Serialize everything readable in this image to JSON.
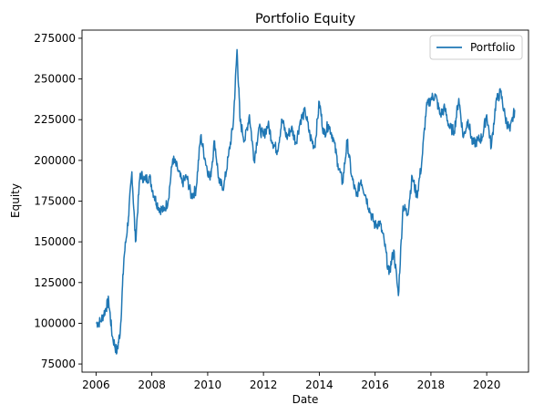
{
  "chart_data": {
    "type": "line",
    "title": "Portfolio Equity",
    "xlabel": "Date",
    "ylabel": "Equity",
    "xlim": [
      "2005-07-01",
      "2021-07-01"
    ],
    "ylim": [
      70000,
      280000
    ],
    "x_ticks": [
      "2006",
      "2008",
      "2010",
      "2012",
      "2014",
      "2016",
      "2018",
      "2020"
    ],
    "y_ticks": [
      75000,
      100000,
      125000,
      150000,
      175000,
      200000,
      225000,
      250000,
      275000
    ],
    "legend_position": "top-right",
    "grid": false,
    "series": [
      {
        "name": "Portfolio",
        "color": "#1f77b4",
        "x": [
          "2006-01-01",
          "2006-03-01",
          "2006-05-01",
          "2006-06-15",
          "2006-08-01",
          "2006-10-01",
          "2006-11-15",
          "2007-01-01",
          "2007-03-01",
          "2007-04-15",
          "2007-06-01",
          "2007-08-01",
          "2007-10-01",
          "2007-12-01",
          "2008-02-01",
          "2008-04-01",
          "2008-06-01",
          "2008-08-01",
          "2008-10-01",
          "2008-12-01",
          "2009-02-01",
          "2009-04-01",
          "2009-06-01",
          "2009-08-01",
          "2009-10-01",
          "2009-12-01",
          "2010-02-01",
          "2010-04-01",
          "2010-06-01",
          "2010-08-01",
          "2010-10-01",
          "2010-12-01",
          "2011-01-20",
          "2011-03-01",
          "2011-05-01",
          "2011-07-01",
          "2011-09-01",
          "2011-11-01",
          "2012-01-01",
          "2012-03-01",
          "2012-05-01",
          "2012-07-01",
          "2012-09-01",
          "2012-11-01",
          "2013-01-01",
          "2013-03-01",
          "2013-05-01",
          "2013-07-01",
          "2013-09-01",
          "2013-11-01",
          "2014-01-01",
          "2014-03-01",
          "2014-05-01",
          "2014-07-01",
          "2014-09-01",
          "2014-11-01",
          "2015-01-01",
          "2015-03-01",
          "2015-05-01",
          "2015-07-01",
          "2015-09-01",
          "2015-11-01",
          "2016-01-01",
          "2016-03-01",
          "2016-05-01",
          "2016-07-01",
          "2016-09-01",
          "2016-11-01",
          "2017-01-01",
          "2017-03-01",
          "2017-05-01",
          "2017-07-01",
          "2017-09-01",
          "2017-11-01",
          "2018-01-01",
          "2018-03-01",
          "2018-05-01",
          "2018-07-01",
          "2018-09-01",
          "2018-11-01",
          "2019-01-01",
          "2019-03-01",
          "2019-05-01",
          "2019-07-01",
          "2019-09-01",
          "2019-11-01",
          "2020-01-01",
          "2020-03-01",
          "2020-05-01",
          "2020-07-01",
          "2020-09-01",
          "2020-11-01",
          "2021-01-01"
        ],
        "y": [
          100000,
          101000,
          108000,
          114000,
          92000,
          82000,
          96000,
          140000,
          165000,
          193000,
          150000,
          192000,
          188000,
          190000,
          178000,
          171000,
          169000,
          175000,
          201000,
          195000,
          186000,
          190000,
          178000,
          182000,
          215000,
          200000,
          188000,
          212000,
          186000,
          184000,
          203000,
          222000,
          268000,
          224000,
          212000,
          228000,
          200000,
          220000,
          215000,
          222000,
          211000,
          206000,
          225000,
          214000,
          220000,
          211000,
          225000,
          230000,
          215000,
          208000,
          236000,
          216000,
          222000,
          214000,
          198000,
          186000,
          212000,
          190000,
          178000,
          188000,
          178000,
          168000,
          160000,
          162000,
          150000,
          130000,
          145000,
          117000,
          172000,
          167000,
          190000,
          178000,
          198000,
          232000,
          238000,
          240000,
          228000,
          232000,
          220000,
          218000,
          238000,
          214000,
          225000,
          210000,
          212000,
          214000,
          228000,
          208000,
          236000,
          242000,
          226000,
          218000,
          231000
        ]
      }
    ]
  }
}
